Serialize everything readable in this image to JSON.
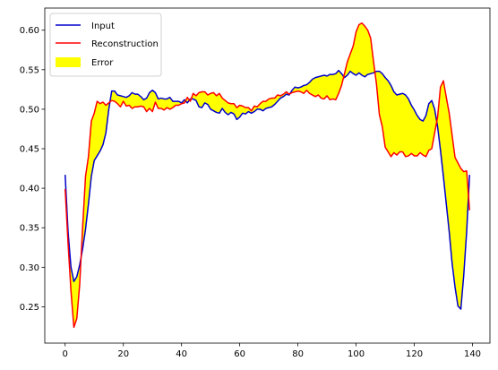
{
  "chart_data": {
    "type": "line",
    "xlim": [
      -7,
      146
    ],
    "ylim": [
      0.204,
      0.628
    ],
    "xticks": [
      0,
      20,
      40,
      60,
      80,
      100,
      120,
      140
    ],
    "yticks": [
      0.25,
      0.3,
      0.35,
      0.4,
      0.45,
      0.5,
      0.55,
      0.6
    ],
    "grid": false,
    "legend_position": "top-left",
    "series": [
      {
        "name": "Input",
        "color": "#0000cc",
        "x": [
          0,
          1,
          2,
          3,
          4,
          5,
          6,
          7,
          8,
          9,
          10,
          11,
          12,
          13,
          14,
          15,
          16,
          17,
          18,
          19,
          20,
          21,
          22,
          23,
          24,
          25,
          26,
          27,
          28,
          29,
          30,
          31,
          32,
          33,
          34,
          35,
          36,
          37,
          38,
          39,
          40,
          41,
          42,
          43,
          44,
          45,
          46,
          47,
          48,
          49,
          50,
          51,
          52,
          53,
          54,
          55,
          56,
          57,
          58,
          59,
          60,
          61,
          62,
          63,
          64,
          65,
          66,
          67,
          68,
          69,
          70,
          71,
          72,
          73,
          74,
          75,
          76,
          77,
          78,
          79,
          80,
          81,
          82,
          83,
          84,
          85,
          86,
          87,
          88,
          89,
          90,
          91,
          92,
          93,
          94,
          95,
          96,
          97,
          98,
          99,
          100,
          101,
          102,
          103,
          104,
          105,
          106,
          107,
          108,
          109,
          110,
          111,
          112,
          113,
          114,
          115,
          116,
          117,
          118,
          119,
          120,
          121,
          122,
          123,
          124,
          125,
          126,
          127,
          128,
          129,
          130,
          131,
          132,
          133,
          134,
          135,
          136,
          137,
          138,
          139
        ],
        "y": [
          0.417,
          0.345,
          0.3,
          0.282,
          0.288,
          0.303,
          0.323,
          0.348,
          0.38,
          0.415,
          0.435,
          0.441,
          0.447,
          0.455,
          0.47,
          0.5,
          0.523,
          0.523,
          0.518,
          0.517,
          0.516,
          0.515,
          0.517,
          0.521,
          0.519,
          0.519,
          0.516,
          0.512,
          0.514,
          0.521,
          0.524,
          0.521,
          0.513,
          0.514,
          0.513,
          0.513,
          0.515,
          0.51,
          0.51,
          0.51,
          0.508,
          0.512,
          0.508,
          0.513,
          0.513,
          0.511,
          0.503,
          0.502,
          0.508,
          0.506,
          0.5,
          0.498,
          0.496,
          0.495,
          0.501,
          0.496,
          0.493,
          0.496,
          0.494,
          0.487,
          0.49,
          0.495,
          0.494,
          0.497,
          0.495,
          0.497,
          0.5,
          0.5,
          0.498,
          0.501,
          0.502,
          0.503,
          0.506,
          0.51,
          0.514,
          0.516,
          0.519,
          0.518,
          0.524,
          0.528,
          0.527,
          0.528,
          0.53,
          0.531,
          0.534,
          0.538,
          0.54,
          0.541,
          0.542,
          0.543,
          0.542,
          0.544,
          0.544,
          0.545,
          0.549,
          0.545,
          0.54,
          0.543,
          0.548,
          0.545,
          0.543,
          0.546,
          0.543,
          0.541,
          0.544,
          0.545,
          0.546,
          0.548,
          0.548,
          0.545,
          0.54,
          0.536,
          0.53,
          0.522,
          0.518,
          0.519,
          0.52,
          0.518,
          0.513,
          0.505,
          0.499,
          0.492,
          0.487,
          0.485,
          0.492,
          0.507,
          0.511,
          0.5,
          0.478,
          0.448,
          0.415,
          0.38,
          0.345,
          0.305,
          0.275,
          0.251,
          0.247,
          0.29,
          0.345,
          0.417
        ]
      },
      {
        "name": "Reconstruction",
        "color": "#ff0000",
        "x": [
          0,
          1,
          2,
          3,
          4,
          5,
          6,
          7,
          8,
          9,
          10,
          11,
          12,
          13,
          14,
          15,
          16,
          17,
          18,
          19,
          20,
          21,
          22,
          23,
          24,
          25,
          26,
          27,
          28,
          29,
          30,
          31,
          32,
          33,
          34,
          35,
          36,
          37,
          38,
          39,
          40,
          41,
          42,
          43,
          44,
          45,
          46,
          47,
          48,
          49,
          50,
          51,
          52,
          53,
          54,
          55,
          56,
          57,
          58,
          59,
          60,
          61,
          62,
          63,
          64,
          65,
          66,
          67,
          68,
          69,
          70,
          71,
          72,
          73,
          74,
          75,
          76,
          77,
          78,
          79,
          80,
          81,
          82,
          83,
          84,
          85,
          86,
          87,
          88,
          89,
          90,
          91,
          92,
          93,
          94,
          95,
          96,
          97,
          98,
          99,
          100,
          101,
          102,
          103,
          104,
          105,
          106,
          107,
          108,
          109,
          110,
          111,
          112,
          113,
          114,
          115,
          116,
          117,
          118,
          119,
          120,
          121,
          122,
          123,
          124,
          125,
          126,
          127,
          128,
          129,
          130,
          131,
          132,
          133,
          134,
          135,
          136,
          137,
          138,
          139
        ],
        "y": [
          0.399,
          0.33,
          0.27,
          0.224,
          0.235,
          0.278,
          0.35,
          0.415,
          0.44,
          0.485,
          0.495,
          0.51,
          0.507,
          0.509,
          0.505,
          0.508,
          0.511,
          0.51,
          0.507,
          0.503,
          0.51,
          0.504,
          0.505,
          0.501,
          0.503,
          0.503,
          0.504,
          0.503,
          0.497,
          0.501,
          0.497,
          0.509,
          0.501,
          0.501,
          0.499,
          0.502,
          0.5,
          0.502,
          0.505,
          0.505,
          0.507,
          0.508,
          0.515,
          0.51,
          0.52,
          0.517,
          0.521,
          0.522,
          0.522,
          0.518,
          0.52,
          0.521,
          0.517,
          0.52,
          0.514,
          0.511,
          0.508,
          0.507,
          0.507,
          0.502,
          0.505,
          0.504,
          0.502,
          0.502,
          0.498,
          0.504,
          0.503,
          0.507,
          0.51,
          0.51,
          0.513,
          0.514,
          0.514,
          0.518,
          0.517,
          0.519,
          0.522,
          0.519,
          0.521,
          0.522,
          0.523,
          0.522,
          0.52,
          0.524,
          0.52,
          0.518,
          0.516,
          0.518,
          0.514,
          0.513,
          0.517,
          0.512,
          0.513,
          0.512,
          0.52,
          0.53,
          0.545,
          0.56,
          0.57,
          0.58,
          0.598,
          0.607,
          0.609,
          0.605,
          0.6,
          0.59,
          0.56,
          0.532,
          0.493,
          0.478,
          0.452,
          0.446,
          0.44,
          0.445,
          0.442,
          0.446,
          0.446,
          0.44,
          0.441,
          0.444,
          0.441,
          0.441,
          0.445,
          0.442,
          0.44,
          0.448,
          0.45,
          0.47,
          0.49,
          0.528,
          0.536,
          0.515,
          0.495,
          0.467,
          0.439,
          0.432,
          0.425,
          0.421,
          0.422,
          0.372
        ]
      }
    ],
    "fill_between": {
      "name": "Error",
      "color": "#ffff00",
      "between": [
        "Input",
        "Reconstruction"
      ]
    }
  }
}
